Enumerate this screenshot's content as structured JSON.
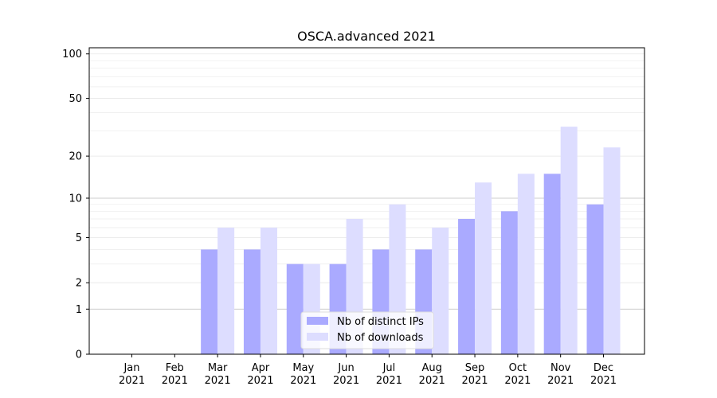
{
  "chart_data": {
    "type": "bar",
    "title": "OSCA.advanced 2021",
    "xlabel": "",
    "ylabel": "",
    "y_scale": "log1p",
    "ylim": [
      0,
      110
    ],
    "y_ticks": [
      0,
      1,
      2,
      5,
      10,
      20,
      50,
      100
    ],
    "categories": [
      [
        "Jan",
        "2021"
      ],
      [
        "Feb",
        "2021"
      ],
      [
        "Mar",
        "2021"
      ],
      [
        "Apr",
        "2021"
      ],
      [
        "May",
        "2021"
      ],
      [
        "Jun",
        "2021"
      ],
      [
        "Jul",
        "2021"
      ],
      [
        "Aug",
        "2021"
      ],
      [
        "Sep",
        "2021"
      ],
      [
        "Oct",
        "2021"
      ],
      [
        "Nov",
        "2021"
      ],
      [
        "Dec",
        "2021"
      ]
    ],
    "series": [
      {
        "name": "Nb of distinct IPs",
        "color": "#aaaaff",
        "values": [
          0,
          0,
          4,
          4,
          3,
          3,
          4,
          4,
          7,
          8,
          15,
          9
        ]
      },
      {
        "name": "Nb of downloads",
        "color": "#ddddff",
        "values": [
          0,
          0,
          6,
          6,
          3,
          7,
          9,
          6,
          13,
          15,
          32,
          23
        ]
      }
    ],
    "legend_position": "lower-center",
    "grid": true
  }
}
